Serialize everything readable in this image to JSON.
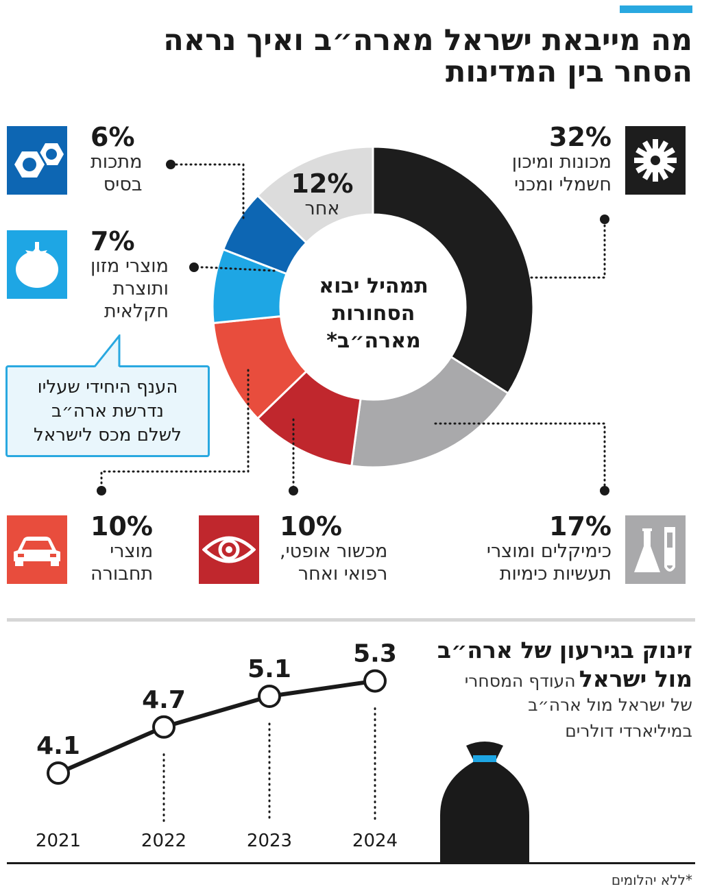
{
  "header": {
    "title_line1": "מה מייבאת ישראל מארה״ב ואיך נראה",
    "title_line2": "הסחר בין המדינות"
  },
  "donut": {
    "center_text": [
      "תמהיל יבוא",
      "הסחורות",
      "מארה״ב*"
    ]
  },
  "categories": [
    {
      "pct": "32%",
      "label_line1": "מכונות ומיכון",
      "label_line2": "חשמלי ומכני",
      "icon": "gear-icon"
    },
    {
      "pct": "17%",
      "label_line1": "כימיקלים ומוצרי",
      "label_line2": "תעשיות כימיות",
      "icon": "lab-flask-icon"
    },
    {
      "pct": "10%",
      "label_line1": "מכשור אופטי,",
      "label_line2": "רפואי ואחר",
      "icon": "eye-icon"
    },
    {
      "pct": "10%",
      "label_line1": "מוצרי",
      "label_line2": "תחבורה",
      "icon": "car-icon"
    },
    {
      "pct": "7%",
      "label_line1": "מוצרי מזון",
      "label_line2": "ותוצרת",
      "label_line3": "חקלאית",
      "icon": "tomato-icon"
    },
    {
      "pct": "6%",
      "label_line1": "מתכות",
      "label_line2": "בסיס",
      "icon": "hex-nut-icon"
    },
    {
      "pct": "12%",
      "label_line1": "אחר",
      "icon": ""
    }
  ],
  "callout": {
    "line1": "הענף היחידי שעליו",
    "line2": "נדרשת ארה״ב",
    "line3": "לשלם מכס לישראל"
  },
  "line_section": {
    "heading_line1": "זינוק בגירעון של ארה״ב",
    "heading_bold2": "מול ישראל",
    "sub_inline": "העודף המסחרי",
    "sub_line2": "של ישראל מול ארה״ב",
    "sub_line3": "במיליארדי דולרים"
  },
  "footnote": "*ללא יהלומים",
  "colors": {
    "accent": "#29a8e0",
    "machinery": "#1d1d1d",
    "chemicals": "#a9a9ab",
    "optical": "#c0272d",
    "transport": "#e84d3d",
    "food": "#1ea6e4",
    "metals": "#0d66b3",
    "other": "#dcdcdc"
  },
  "chart_data": [
    {
      "type": "pie",
      "title": "תמהיל יבוא הסחורות מארה״ב*",
      "categories": [
        "מכונות ומיכון חשמלי ומכני",
        "כימיקלים ומוצרי תעשיות כימיות",
        "מכשור אופטי, רפואי ואחר",
        "מוצרי תחבורה",
        "מוצרי מזון ותוצרת חקלאית",
        "מתכות בסיס",
        "אחר"
      ],
      "values": [
        32,
        17,
        10,
        10,
        7,
        6,
        12
      ],
      "unit": "%"
    },
    {
      "type": "line",
      "x": [
        "2021",
        "2022",
        "2023",
        "2024"
      ],
      "values": [
        4.1,
        4.7,
        5.1,
        5.3
      ],
      "ylim": [
        3.6,
        5.6
      ]
    }
  ]
}
